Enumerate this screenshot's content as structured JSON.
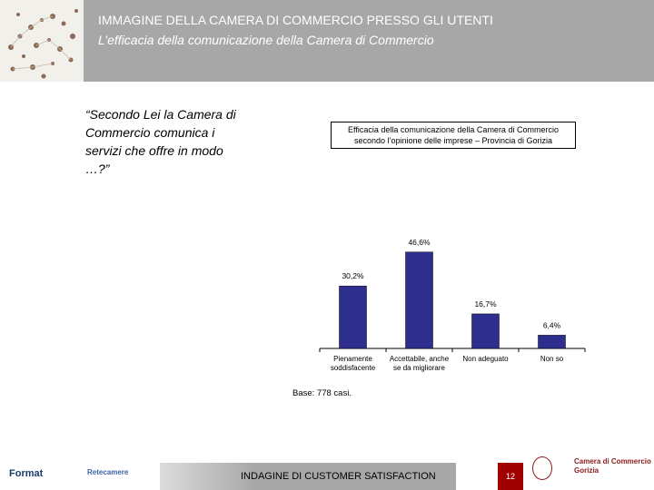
{
  "header": {
    "title": "IMMAGINE DELLA CAMERA DI COMMERCIO PRESSO GLI UTENTI",
    "subtitle": "L’efficacia della comunicazione della Camera di Commercio"
  },
  "question": "“Secondo Lei la Camera di Commercio comunica i servizi che offre in modo …?”",
  "chart_data": {
    "type": "bar",
    "title": "Efficacia della comunicazione della Camera di Commercio",
    "subtitle": "secondo l’opinione delle imprese – Provincia di Gorizia",
    "categories": [
      [
        "Pienamente",
        "soddisfacente"
      ],
      [
        "Accettabile, anche",
        "se da migliorare"
      ],
      [
        "Non adeguato"
      ],
      [
        "Non so"
      ]
    ],
    "values": [
      30.2,
      46.6,
      16.7,
      6.4
    ],
    "value_labels": [
      "30,2%",
      "46,6%",
      "16,7%",
      "6,4%"
    ],
    "ylim": [
      0,
      50
    ],
    "bar_color": "#2e2e8f",
    "note": "Base: 778 casi."
  },
  "footer": {
    "center_text": "INDAGINE DI CUSTOMER SATISFACTION",
    "page_number": "12"
  },
  "logos": {
    "left": "Format",
    "middle": "Retecamere",
    "right_line1": "Camera di Commercio",
    "right_line2": "Gorizia"
  },
  "colors": {
    "header_bg": "#a7a7a7",
    "page_box": "#a00000"
  }
}
